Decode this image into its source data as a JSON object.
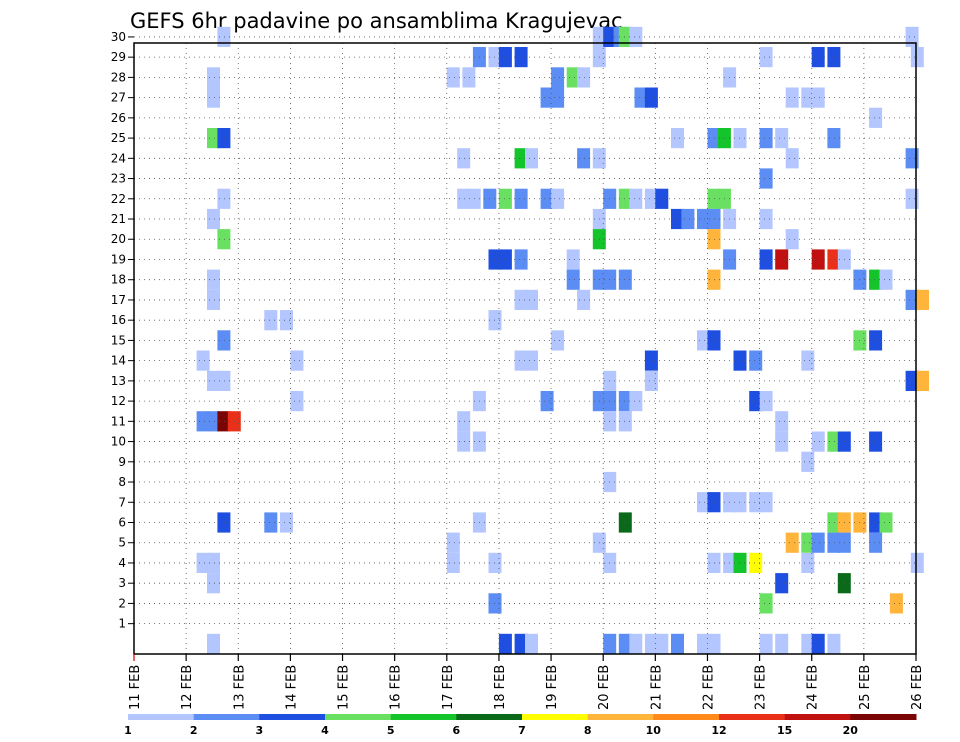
{
  "chart_data": {
    "type": "heatmap",
    "title": "GEFS 6hr padavine po ansamblima Kragujevac",
    "xlabel": "",
    "ylabel": "",
    "x_start": "11 FEB",
    "x_end": "26 FEB",
    "x_ticks": [
      "11 FEB",
      "12 FEB",
      "13 FEB",
      "14 FEB",
      "15 FEB",
      "16 FEB",
      "17 FEB",
      "18 FEB",
      "19 FEB",
      "20 FEB",
      "21 FEB",
      "22 FEB",
      "23 FEB",
      "24 FEB",
      "25 FEB",
      "26 FEB"
    ],
    "y_ticks": [
      "1",
      "2",
      "3",
      "4",
      "5",
      "6",
      "7",
      "8",
      "9",
      "10",
      "11",
      "12",
      "13",
      "14",
      "15",
      "16",
      "17",
      "18",
      "19",
      "20",
      "21",
      "22",
      "23",
      "24",
      "25",
      "26",
      "27",
      "28",
      "29",
      "30"
    ],
    "grid": true,
    "legend_position": "bottom",
    "colorbar_labels": [
      "1",
      "2",
      "3",
      "4",
      "5",
      "6",
      "7",
      "8",
      "10",
      "12",
      "15",
      "20"
    ],
    "colorbar_colors": [
      "#b3c6ff",
      "#5b8df5",
      "#1f4fe0",
      "#6ae062",
      "#13c42a",
      "#0b6a1a",
      "#ffff00",
      "#ffb43c",
      "#ff8a1a",
      "#ea3018",
      "#c01010",
      "#7a0505"
    ],
    "level_colors": {
      "1": "#b3c6ff",
      "2": "#5b8df5",
      "3": "#1f4fe0",
      "4": "#6ae062",
      "5": "#13c42a",
      "6": "#0b6a1a",
      "7": "#ffff00",
      "8": "#ffb43c",
      "10": "#ff8a1a",
      "12": "#ea3018",
      "15": "#c01010",
      "20": "#7a0505"
    },
    "cells": [
      [
        12.6,
        30,
        1
      ],
      [
        19.8,
        30,
        1
      ],
      [
        20.0,
        30,
        3
      ],
      [
        20.2,
        30,
        2
      ],
      [
        20.3,
        30,
        4
      ],
      [
        20.5,
        30,
        1
      ],
      [
        25.8,
        30,
        1
      ],
      [
        17.5,
        29,
        2
      ],
      [
        17.8,
        29,
        1
      ],
      [
        18.0,
        29,
        3
      ],
      [
        18.3,
        29,
        3
      ],
      [
        19.8,
        29,
        1
      ],
      [
        23.0,
        29,
        1
      ],
      [
        24.0,
        29,
        3
      ],
      [
        24.3,
        29,
        3
      ],
      [
        25.9,
        29,
        1
      ],
      [
        17.0,
        28,
        1
      ],
      [
        17.3,
        28,
        1
      ],
      [
        12.4,
        28,
        1
      ],
      [
        19.0,
        28,
        2
      ],
      [
        19.3,
        28,
        4
      ],
      [
        19.5,
        28,
        1
      ],
      [
        22.3,
        28,
        1
      ],
      [
        12.4,
        27,
        1
      ],
      [
        18.8,
        27,
        2
      ],
      [
        19.0,
        27,
        2
      ],
      [
        20.6,
        27,
        2
      ],
      [
        20.8,
        27,
        3
      ],
      [
        23.5,
        27,
        1
      ],
      [
        23.8,
        27,
        1
      ],
      [
        24.0,
        27,
        1
      ],
      [
        25.1,
        26,
        1
      ],
      [
        12.4,
        25,
        4
      ],
      [
        12.6,
        25,
        3
      ],
      [
        21.3,
        25,
        1
      ],
      [
        22.0,
        25,
        2
      ],
      [
        22.2,
        25,
        5
      ],
      [
        22.5,
        25,
        1
      ],
      [
        23.0,
        25,
        2
      ],
      [
        23.3,
        25,
        1
      ],
      [
        24.3,
        25,
        2
      ],
      [
        17.2,
        24,
        1
      ],
      [
        18.3,
        24,
        5
      ],
      [
        18.5,
        24,
        1
      ],
      [
        19.5,
        24,
        2
      ],
      [
        19.8,
        24,
        1
      ],
      [
        23.5,
        24,
        1
      ],
      [
        25.8,
        24,
        2
      ],
      [
        23.0,
        23,
        2
      ],
      [
        12.6,
        22,
        1
      ],
      [
        17.2,
        22,
        1
      ],
      [
        17.4,
        22,
        1
      ],
      [
        17.7,
        22,
        2
      ],
      [
        18.0,
        22,
        4
      ],
      [
        18.3,
        22,
        2
      ],
      [
        18.8,
        22,
        2
      ],
      [
        19.0,
        22,
        1
      ],
      [
        20.0,
        22,
        2
      ],
      [
        20.3,
        22,
        4
      ],
      [
        20.5,
        22,
        1
      ],
      [
        20.8,
        22,
        1
      ],
      [
        21.0,
        22,
        3
      ],
      [
        22.0,
        22,
        4
      ],
      [
        22.2,
        22,
        4
      ],
      [
        25.8,
        22,
        1
      ],
      [
        12.4,
        21,
        1
      ],
      [
        19.8,
        21,
        1
      ],
      [
        21.3,
        21,
        3
      ],
      [
        21.5,
        21,
        2
      ],
      [
        21.8,
        21,
        2
      ],
      [
        22.0,
        21,
        2
      ],
      [
        22.3,
        21,
        1
      ],
      [
        23.0,
        21,
        1
      ],
      [
        12.6,
        20,
        4
      ],
      [
        19.8,
        20,
        5
      ],
      [
        22.0,
        20,
        8
      ],
      [
        23.5,
        20,
        1
      ],
      [
        17.8,
        19,
        3
      ],
      [
        18.0,
        19,
        3
      ],
      [
        18.3,
        19,
        2
      ],
      [
        19.3,
        19,
        1
      ],
      [
        22.3,
        19,
        2
      ],
      [
        23.0,
        19,
        3
      ],
      [
        23.3,
        19,
        15
      ],
      [
        24.0,
        19,
        15
      ],
      [
        24.3,
        19,
        12
      ],
      [
        24.5,
        19,
        1
      ],
      [
        12.4,
        18,
        1
      ],
      [
        19.3,
        18,
        2
      ],
      [
        19.8,
        18,
        2
      ],
      [
        20.0,
        18,
        2
      ],
      [
        20.3,
        18,
        2
      ],
      [
        22.0,
        18,
        8
      ],
      [
        24.8,
        18,
        2
      ],
      [
        25.1,
        18,
        5
      ],
      [
        25.3,
        18,
        1
      ],
      [
        12.4,
        17,
        1
      ],
      [
        18.3,
        17,
        1
      ],
      [
        18.5,
        17,
        1
      ],
      [
        19.5,
        17,
        1
      ],
      [
        25.8,
        17,
        2
      ],
      [
        26.0,
        17,
        8
      ],
      [
        13.5,
        16,
        1
      ],
      [
        13.8,
        16,
        1
      ],
      [
        17.8,
        16,
        1
      ],
      [
        12.6,
        15,
        2
      ],
      [
        19.0,
        15,
        1
      ],
      [
        21.8,
        15,
        1
      ],
      [
        22.0,
        15,
        3
      ],
      [
        24.8,
        15,
        4
      ],
      [
        25.1,
        15,
        3
      ],
      [
        12.2,
        14,
        1
      ],
      [
        14.0,
        14,
        1
      ],
      [
        18.3,
        14,
        1
      ],
      [
        18.5,
        14,
        1
      ],
      [
        20.8,
        14,
        3
      ],
      [
        22.5,
        14,
        3
      ],
      [
        22.8,
        14,
        2
      ],
      [
        23.8,
        14,
        1
      ],
      [
        12.4,
        13,
        1
      ],
      [
        12.6,
        13,
        1
      ],
      [
        20.0,
        13,
        1
      ],
      [
        20.8,
        13,
        1
      ],
      [
        25.8,
        13,
        3
      ],
      [
        26.0,
        13,
        8
      ],
      [
        14.0,
        12,
        1
      ],
      [
        17.5,
        12,
        1
      ],
      [
        18.8,
        12,
        2
      ],
      [
        19.8,
        12,
        2
      ],
      [
        20.0,
        12,
        2
      ],
      [
        20.3,
        12,
        2
      ],
      [
        20.5,
        12,
        1
      ],
      [
        22.8,
        12,
        3
      ],
      [
        23.0,
        12,
        1
      ],
      [
        12.2,
        11,
        2
      ],
      [
        12.4,
        11,
        2
      ],
      [
        12.6,
        11,
        20
      ],
      [
        12.8,
        11,
        12
      ],
      [
        17.2,
        11,
        1
      ],
      [
        20.0,
        11,
        1
      ],
      [
        20.3,
        11,
        1
      ],
      [
        23.3,
        11,
        1
      ],
      [
        17.2,
        10,
        1
      ],
      [
        17.5,
        10,
        1
      ],
      [
        23.3,
        10,
        1
      ],
      [
        24.0,
        10,
        1
      ],
      [
        24.3,
        10,
        4
      ],
      [
        24.5,
        10,
        3
      ],
      [
        25.1,
        10,
        3
      ],
      [
        23.8,
        9,
        1
      ],
      [
        20.0,
        8,
        1
      ],
      [
        21.8,
        7,
        1
      ],
      [
        22.0,
        7,
        3
      ],
      [
        22.3,
        7,
        1
      ],
      [
        22.5,
        7,
        1
      ],
      [
        22.8,
        7,
        1
      ],
      [
        23.0,
        7,
        1
      ],
      [
        12.6,
        6,
        3
      ],
      [
        13.5,
        6,
        2
      ],
      [
        13.8,
        6,
        1
      ],
      [
        17.5,
        6,
        1
      ],
      [
        20.3,
        6,
        6
      ],
      [
        24.3,
        6,
        4
      ],
      [
        24.5,
        6,
        8
      ],
      [
        24.8,
        6,
        8
      ],
      [
        25.1,
        6,
        3
      ],
      [
        25.3,
        6,
        4
      ],
      [
        17.0,
        5,
        1
      ],
      [
        19.8,
        5,
        1
      ],
      [
        23.5,
        5,
        8
      ],
      [
        23.8,
        5,
        4
      ],
      [
        24.0,
        5,
        2
      ],
      [
        24.3,
        5,
        2
      ],
      [
        24.5,
        5,
        2
      ],
      [
        25.1,
        5,
        2
      ],
      [
        12.2,
        4,
        1
      ],
      [
        12.4,
        4,
        1
      ],
      [
        17.0,
        4,
        1
      ],
      [
        17.8,
        4,
        1
      ],
      [
        20.0,
        4,
        1
      ],
      [
        22.0,
        4,
        1
      ],
      [
        22.3,
        4,
        1
      ],
      [
        22.5,
        4,
        5
      ],
      [
        22.8,
        4,
        7
      ],
      [
        23.8,
        4,
        1
      ],
      [
        25.9,
        4,
        1
      ],
      [
        12.4,
        3,
        1
      ],
      [
        23.3,
        3,
        3
      ],
      [
        24.5,
        3,
        6
      ],
      [
        17.8,
        2,
        2
      ],
      [
        23.0,
        2,
        4
      ],
      [
        25.5,
        2,
        8
      ],
      [
        12.4,
        0,
        1
      ],
      [
        18.0,
        0,
        3
      ],
      [
        18.3,
        0,
        3
      ],
      [
        18.5,
        0,
        1
      ],
      [
        20.0,
        0,
        2
      ],
      [
        20.3,
        0,
        2
      ],
      [
        20.5,
        0,
        1
      ],
      [
        20.8,
        0,
        1
      ],
      [
        21.0,
        0,
        1
      ],
      [
        21.3,
        0,
        2
      ],
      [
        21.8,
        0,
        1
      ],
      [
        22.0,
        0,
        1
      ],
      [
        23.0,
        0,
        1
      ],
      [
        23.3,
        0,
        1
      ],
      [
        23.8,
        0,
        1
      ],
      [
        24.0,
        0,
        3
      ],
      [
        24.3,
        0,
        1
      ]
    ]
  }
}
